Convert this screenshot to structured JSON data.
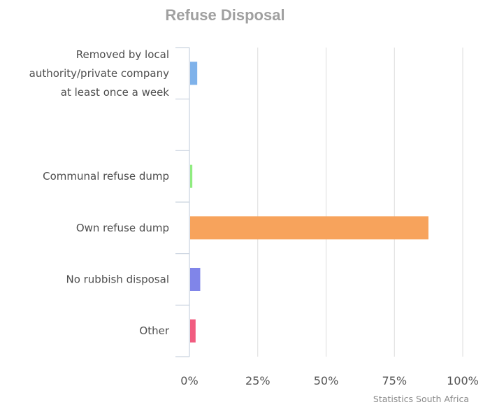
{
  "chart_data": {
    "type": "bar",
    "orientation": "horizontal",
    "title": "Refuse Disposal",
    "categories": [
      [
        "Removed by local",
        "authority/private company",
        "at least once a week"
      ],
      [],
      [
        "Communal refuse dump"
      ],
      [
        "Own refuse dump"
      ],
      [
        "No rubbish disposal"
      ],
      [
        "Other"
      ]
    ],
    "values": [
      2.6,
      null,
      0.8,
      87.2,
      3.7,
      2.0
    ],
    "colors": [
      "#7fb2ea",
      null,
      "#90ec80",
      "#f7a35c",
      "#8085e9",
      "#f15c80"
    ],
    "xlim": [
      0,
      100
    ],
    "x_ticks": [
      "0%",
      "25%",
      "50%",
      "75%",
      "100%"
    ],
    "grid": true,
    "credits": "Statistics South Africa"
  }
}
